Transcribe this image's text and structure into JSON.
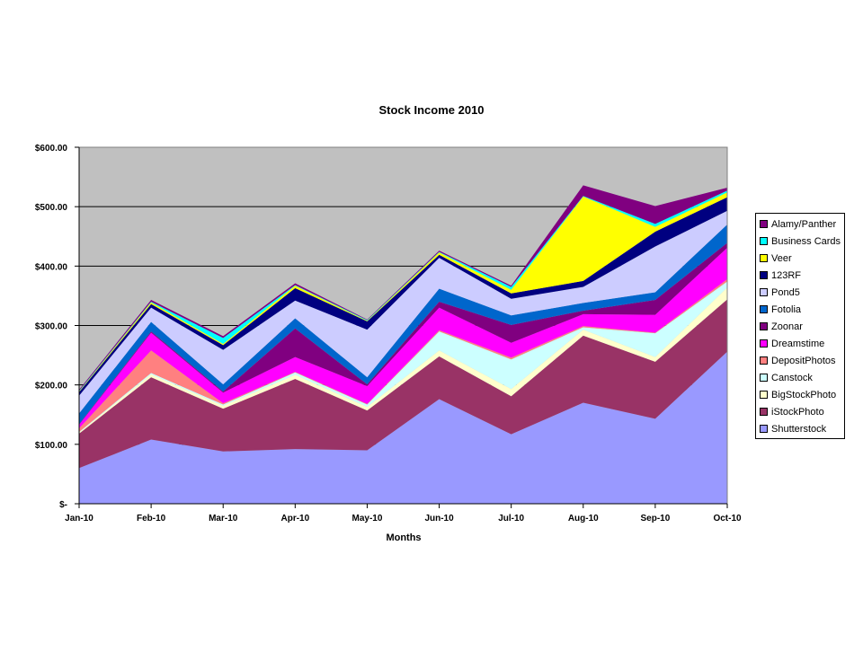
{
  "chart_data": {
    "type": "area",
    "stacked": true,
    "title": "Stock Income 2010",
    "xlabel": "Months",
    "ylabel": "",
    "categories": [
      "Jan-10",
      "Feb-10",
      "Mar-10",
      "Apr-10",
      "May-10",
      "Jun-10",
      "Jul-10",
      "Aug-10",
      "Sep-10",
      "Oct-10"
    ],
    "ylim": [
      0,
      600
    ],
    "yticks": [
      0,
      100,
      200,
      300,
      400,
      500,
      600
    ],
    "ytick_labels": [
      "$-",
      "$100.00",
      "$200.00",
      "$300.00",
      "$400.00",
      "$500.00",
      "$600.00"
    ],
    "grid": "horizontal",
    "plot_background": "#C0C0C0",
    "legend_position": "right",
    "series": [
      {
        "name": "Shutterstock",
        "color": "#9999FF",
        "values": [
          60,
          108,
          88,
          92,
          90,
          176,
          117,
          170,
          143,
          256
        ]
      },
      {
        "name": "iStockPhoto",
        "color": "#993366",
        "values": [
          58,
          105,
          72,
          118,
          67,
          72,
          64,
          113,
          96,
          88
        ]
      },
      {
        "name": "BigStockPhoto",
        "color": "#FFFFCC",
        "values": [
          2,
          5,
          5,
          7,
          6,
          10,
          12,
          10,
          8,
          20
        ]
      },
      {
        "name": "Canstock",
        "color": "#CCFFFF",
        "values": [
          1,
          2,
          2,
          4,
          4,
          32,
          50,
          4,
          40,
          10
        ]
      },
      {
        "name": "DepositPhotos",
        "color": "#FF8080",
        "values": [
          6,
          38,
          2,
          1,
          1,
          2,
          3,
          2,
          1,
          4
        ]
      },
      {
        "name": "Dreamstime",
        "color": "#FF00FF",
        "values": [
          6,
          30,
          18,
          25,
          30,
          38,
          25,
          20,
          30,
          53
        ]
      },
      {
        "name": "Zoonar",
        "color": "#800080",
        "values": [
          1,
          2,
          2,
          48,
          3,
          10,
          30,
          6,
          25,
          8
        ]
      },
      {
        "name": "Fotolia",
        "color": "#0066CC",
        "values": [
          18,
          16,
          12,
          17,
          12,
          22,
          16,
          13,
          13,
          31
        ]
      },
      {
        "name": "Pond5",
        "color": "#CCCCFF",
        "values": [
          30,
          24,
          58,
          30,
          80,
          52,
          28,
          27,
          77,
          23
        ]
      },
      {
        "name": "123RF",
        "color": "#000080",
        "values": [
          6,
          6,
          8,
          21,
          14,
          5,
          9,
          10,
          25,
          23
        ]
      },
      {
        "name": "Veer",
        "color": "#FFFF00",
        "values": [
          1,
          3,
          2,
          4,
          1,
          4,
          6,
          142,
          8,
          8
        ]
      },
      {
        "name": "Business Cards",
        "color": "#00FFFF",
        "values": [
          1,
          1,
          10,
          1,
          1,
          1,
          5,
          1,
          5,
          3
        ]
      },
      {
        "name": "Alamy/Panther",
        "color": "#800080",
        "values": [
          2,
          3,
          3,
          3,
          1,
          2,
          2,
          18,
          30,
          5
        ]
      }
    ]
  }
}
